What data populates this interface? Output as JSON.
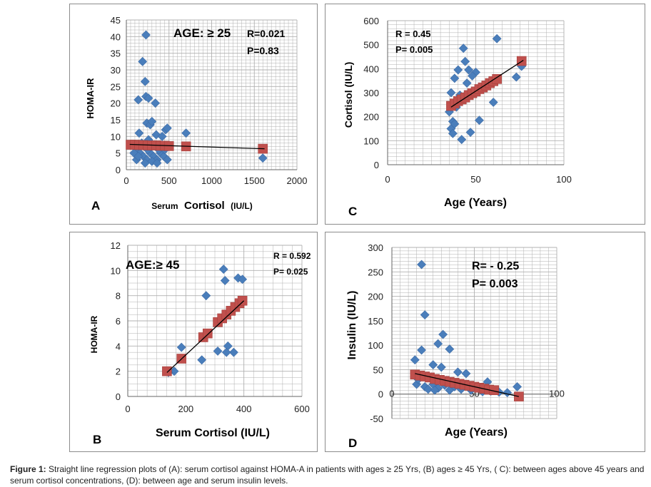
{
  "colors": {
    "scatter": "#4a7ebb",
    "regression_marker": "#c0504d",
    "regression_line": "#000000",
    "grid": "#b0b0b0"
  },
  "caption": {
    "label": "Figure 1:",
    "text": "Straight line regression plots of (A): serum cortisol against HOMA-A in patients with ages ≥ 25 Yrs, (B) ages ≥ 45 Yrs, ( C): between ages above 45 years and serum cortisol concentrations, (D): between age and serum insulin levels."
  },
  "chart_data": [
    {
      "id": "A",
      "panel_label": "A",
      "type": "scatter",
      "title": "AGE: ≥ 25",
      "stat_r": "R=0.021",
      "stat_p": "P=0.83",
      "xlabel_small": "Serum",
      "xlabel_big": "Cortisol",
      "xlabel_unit": "(IU/L)",
      "ylabel": "HOMA-IR",
      "xlim": [
        0,
        2000
      ],
      "ylim": [
        0,
        45
      ],
      "xticks": [
        0,
        500,
        1000,
        1500,
        2000
      ],
      "yticks": [
        0,
        5,
        10,
        15,
        20,
        25,
        30,
        35,
        40,
        45
      ],
      "xtick_labels": [
        "0",
        "500",
        "1000",
        "1500",
        "2000"
      ],
      "ytick_labels": [
        "0",
        "5",
        "10",
        "15",
        "20",
        "25",
        "30",
        "35",
        "40",
        "45"
      ],
      "points": [
        [
          230,
          40.5
        ],
        [
          190,
          32.5
        ],
        [
          220,
          26.5
        ],
        [
          230,
          22
        ],
        [
          260,
          21.5
        ],
        [
          140,
          21
        ],
        [
          340,
          20
        ],
        [
          240,
          14
        ],
        [
          280,
          13.5
        ],
        [
          300,
          14.5
        ],
        [
          150,
          11
        ],
        [
          350,
          10.5
        ],
        [
          420,
          10
        ],
        [
          460,
          12
        ],
        [
          480,
          12.5
        ],
        [
          700,
          11
        ],
        [
          100,
          7
        ],
        [
          130,
          6
        ],
        [
          160,
          5
        ],
        [
          200,
          4
        ],
        [
          240,
          3
        ],
        [
          280,
          5
        ],
        [
          320,
          4
        ],
        [
          360,
          3
        ],
        [
          400,
          5
        ],
        [
          440,
          4
        ],
        [
          480,
          3
        ],
        [
          180,
          8
        ],
        [
          260,
          9
        ],
        [
          330,
          7.5
        ],
        [
          380,
          6
        ],
        [
          120,
          3
        ],
        [
          220,
          2
        ],
        [
          300,
          2.5
        ],
        [
          360,
          2
        ],
        [
          90,
          5
        ],
        [
          140,
          4
        ],
        [
          250,
          6
        ],
        [
          290,
          8
        ],
        [
          410,
          7
        ],
        [
          450,
          6
        ],
        [
          1600,
          3.5
        ]
      ],
      "fit_markers": [
        [
          50,
          7.5
        ],
        [
          100,
          7.5
        ],
        [
          150,
          7.4
        ],
        [
          200,
          7.4
        ],
        [
          250,
          7.3
        ],
        [
          300,
          7.3
        ],
        [
          350,
          7.3
        ],
        [
          400,
          7.2
        ],
        [
          450,
          7.2
        ],
        [
          500,
          7.1
        ],
        [
          700,
          7
        ],
        [
          1600,
          6.3
        ]
      ],
      "fit_line": [
        [
          40,
          7.6
        ],
        [
          1620,
          6.3
        ]
      ]
    },
    {
      "id": "B",
      "panel_label": "B",
      "type": "scatter",
      "title": "AGE:≥ 45",
      "stat_r": "R = 0.592",
      "stat_p": "P= 0.025",
      "xlabel": "Serum Cortisol (IU/L)",
      "ylabel": "HOMA-IR",
      "xlim": [
        0,
        600
      ],
      "ylim": [
        0,
        12
      ],
      "xticks": [
        0,
        200,
        400,
        600
      ],
      "yticks": [
        0,
        2,
        4,
        6,
        8,
        10,
        12
      ],
      "xtick_labels": [
        "0",
        "200",
        "400",
        "600"
      ],
      "ytick_labels": [
        "0",
        "2",
        "4",
        "6",
        "8",
        "10",
        "12"
      ],
      "points": [
        [
          330,
          10.1
        ],
        [
          380,
          9.4
        ],
        [
          395,
          9.3
        ],
        [
          335,
          9.2
        ],
        [
          270,
          8.0
        ],
        [
          185,
          3.9
        ],
        [
          310,
          3.6
        ],
        [
          345,
          4.0
        ],
        [
          365,
          3.5
        ],
        [
          255,
          2.9
        ],
        [
          160,
          2.0
        ],
        [
          140,
          1.9
        ],
        [
          340,
          3.5
        ]
      ],
      "fit_markers": [
        [
          135,
          2.0
        ],
        [
          185,
          3.0
        ],
        [
          260,
          4.7
        ],
        [
          275,
          5.0
        ],
        [
          310,
          5.9
        ],
        [
          325,
          6.2
        ],
        [
          340,
          6.5
        ],
        [
          355,
          6.8
        ],
        [
          370,
          7.1
        ],
        [
          385,
          7.4
        ],
        [
          395,
          7.6
        ]
      ],
      "fit_line": [
        [
          135,
          1.9
        ],
        [
          400,
          7.6
        ]
      ]
    },
    {
      "id": "C",
      "panel_label": "C",
      "type": "scatter",
      "title": "",
      "stat_r": "R = 0.45",
      "stat_p": "P= 0.005",
      "xlabel": "Age (Years)",
      "ylabel": "Cortisol (IU/L)",
      "xlim": [
        0,
        100
      ],
      "ylim": [
        0,
        600
      ],
      "xticks": [
        0,
        50,
        100
      ],
      "yticks": [
        0,
        100,
        200,
        300,
        400,
        500,
        600
      ],
      "xtick_labels": [
        "0",
        "50",
        "100"
      ],
      "ytick_labels": [
        "0",
        "100",
        "200",
        "300",
        "400",
        "500",
        "600"
      ],
      "points": [
        [
          62,
          525
        ],
        [
          43,
          485
        ],
        [
          44,
          430
        ],
        [
          40,
          395
        ],
        [
          46,
          395
        ],
        [
          50,
          385
        ],
        [
          48,
          370
        ],
        [
          38,
          360
        ],
        [
          76,
          410
        ],
        [
          73,
          365
        ],
        [
          36,
          300
        ],
        [
          38,
          260
        ],
        [
          39,
          240
        ],
        [
          37,
          180
        ],
        [
          36,
          150
        ],
        [
          37,
          130
        ],
        [
          38,
          170
        ],
        [
          47,
          135
        ],
        [
          52,
          185
        ],
        [
          42,
          105
        ],
        [
          60,
          260
        ],
        [
          35,
          220
        ],
        [
          41,
          290
        ],
        [
          45,
          340
        ],
        [
          56,
          330
        ]
      ],
      "fit_markers": [
        [
          36,
          245
        ],
        [
          38,
          255
        ],
        [
          40,
          265
        ],
        [
          42,
          272
        ],
        [
          44,
          280
        ],
        [
          46,
          290
        ],
        [
          48,
          298
        ],
        [
          50,
          305
        ],
        [
          52,
          315
        ],
        [
          54,
          322
        ],
        [
          56,
          330
        ],
        [
          58,
          340
        ],
        [
          60,
          348
        ],
        [
          62,
          357
        ],
        [
          76,
          432
        ]
      ],
      "fit_line": [
        [
          36,
          240
        ],
        [
          77,
          435
        ]
      ]
    },
    {
      "id": "D",
      "panel_label": "D",
      "type": "scatter",
      "title": "",
      "stat_r": "R= - 0.25",
      "stat_p": "P= 0.003",
      "xlabel": "Age (Years)",
      "ylabel": "Insulin (IU/L)",
      "xlim": [
        0,
        100
      ],
      "ylim": [
        -50,
        300
      ],
      "xticks": [
        0,
        50,
        100
      ],
      "yticks": [
        -50,
        0,
        50,
        100,
        150,
        200,
        250,
        300
      ],
      "xtick_labels": [
        "0",
        "50",
        "100"
      ],
      "ytick_labels": [
        "-50",
        "0",
        "50",
        "100",
        "150",
        "200",
        "250",
        "300"
      ],
      "points": [
        [
          18,
          265
        ],
        [
          20,
          162
        ],
        [
          31,
          122
        ],
        [
          28,
          103
        ],
        [
          35,
          92
        ],
        [
          18,
          90
        ],
        [
          14,
          70
        ],
        [
          25,
          60
        ],
        [
          30,
          55
        ],
        [
          40,
          45
        ],
        [
          45,
          42
        ],
        [
          58,
          25
        ],
        [
          76,
          15
        ],
        [
          15,
          20
        ],
        [
          20,
          15
        ],
        [
          22,
          10
        ],
        [
          25,
          20
        ],
        [
          28,
          12
        ],
        [
          32,
          18
        ],
        [
          35,
          8
        ],
        [
          38,
          15
        ],
        [
          42,
          10
        ],
        [
          48,
          8
        ],
        [
          52,
          12
        ],
        [
          55,
          5
        ],
        [
          60,
          6
        ],
        [
          65,
          4
        ],
        [
          70,
          3
        ],
        [
          16,
          30
        ],
        [
          24,
          35
        ],
        [
          33,
          28
        ],
        [
          26,
          8
        ],
        [
          44,
          20
        ]
      ],
      "fit_markers": [
        [
          14,
          40
        ],
        [
          17,
          38
        ],
        [
          20,
          36
        ],
        [
          23,
          34
        ],
        [
          26,
          31
        ],
        [
          29,
          29
        ],
        [
          32,
          27
        ],
        [
          35,
          25
        ],
        [
          38,
          23
        ],
        [
          41,
          21
        ],
        [
          44,
          19
        ],
        [
          47,
          17
        ],
        [
          50,
          15
        ],
        [
          53,
          13
        ],
        [
          56,
          11
        ],
        [
          59,
          9
        ],
        [
          62,
          8
        ],
        [
          77,
          -5
        ]
      ],
      "fit_line": [
        [
          14,
          42
        ],
        [
          77,
          -5
        ]
      ]
    }
  ]
}
